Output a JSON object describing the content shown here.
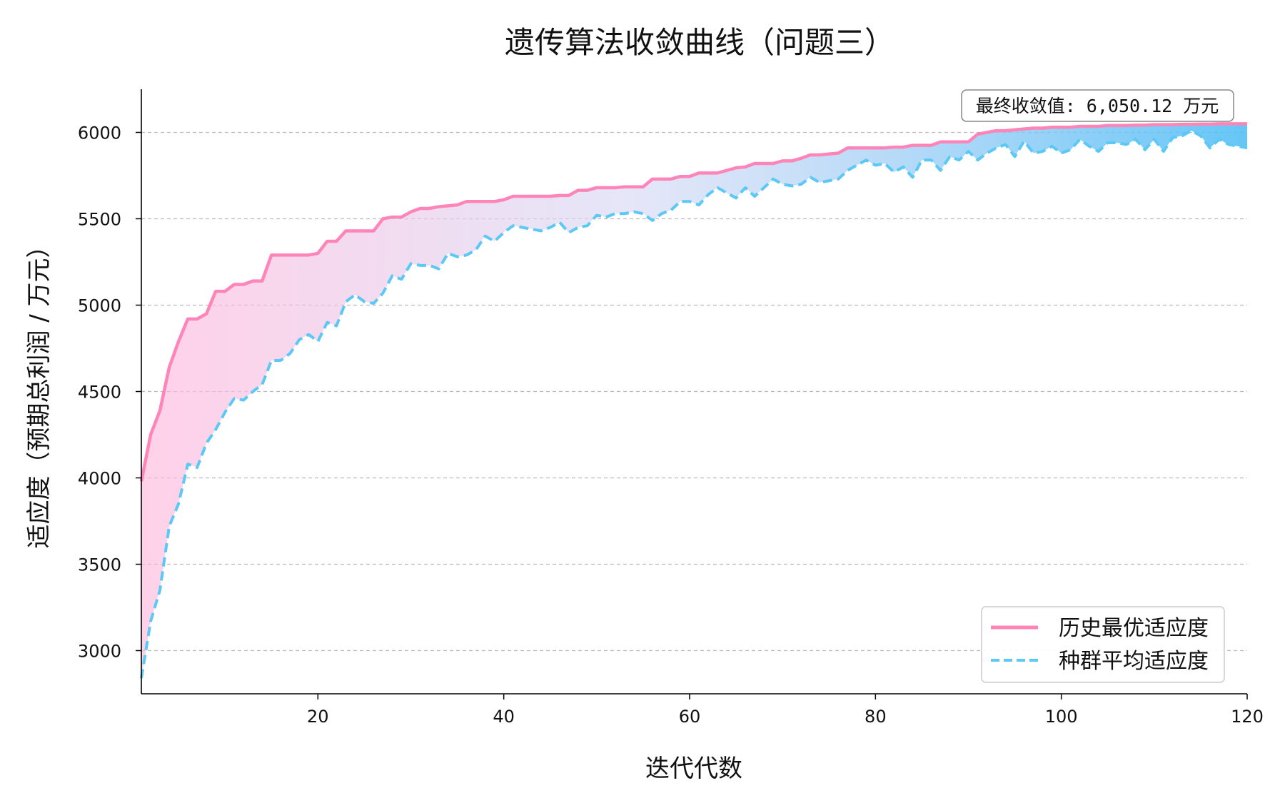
{
  "chart_data": {
    "type": "line",
    "title": "遗传算法收敛曲线（问题三）",
    "xlabel": "迭代代数",
    "ylabel": "适应度（预期总利润 / 万元）",
    "xlim": [
      1,
      120
    ],
    "ylim": [
      2750,
      6250
    ],
    "x_ticks": [
      20,
      40,
      60,
      80,
      100,
      120
    ],
    "y_ticks": [
      3000,
      3500,
      4000,
      4500,
      5000,
      5500,
      6000
    ],
    "grid": "horizontal-dashed",
    "legend_position": "bottom-right",
    "annotation": "最终收敛值: 6,050.12 万元",
    "fill_between": true,
    "series": [
      {
        "name": "历史最优适应度",
        "style": "solid",
        "color": "#ff85b9",
        "x": [
          1,
          2,
          3,
          4,
          5,
          6,
          7,
          8,
          9,
          10,
          11,
          12,
          13,
          14,
          15,
          16,
          17,
          18,
          19,
          20,
          21,
          22,
          23,
          24,
          25,
          26,
          27,
          28,
          29,
          30,
          31,
          32,
          33,
          34,
          35,
          36,
          37,
          38,
          39,
          40,
          41,
          42,
          43,
          44,
          45,
          46,
          47,
          48,
          49,
          50,
          51,
          52,
          53,
          54,
          55,
          56,
          57,
          58,
          59,
          60,
          61,
          62,
          63,
          64,
          65,
          66,
          67,
          68,
          69,
          70,
          71,
          72,
          73,
          74,
          75,
          76,
          77,
          78,
          79,
          80,
          81,
          82,
          83,
          84,
          85,
          86,
          87,
          88,
          89,
          90,
          91,
          92,
          93,
          94,
          95,
          96,
          97,
          98,
          99,
          100,
          101,
          102,
          103,
          104,
          105,
          106,
          107,
          108,
          109,
          110,
          111,
          112,
          113,
          114,
          115,
          116,
          117,
          118,
          119,
          120
        ],
        "values": [
          3980,
          4250,
          4390,
          4640,
          4790,
          4920,
          4920,
          4950,
          5080,
          5080,
          5120,
          5120,
          5140,
          5140,
          5290,
          5290,
          5290,
          5290,
          5290,
          5300,
          5370,
          5370,
          5430,
          5430,
          5430,
          5430,
          5500,
          5510,
          5510,
          5540,
          5560,
          5560,
          5570,
          5575,
          5580,
          5600,
          5600,
          5600,
          5600,
          5610,
          5630,
          5630,
          5630,
          5630,
          5630,
          5635,
          5635,
          5665,
          5665,
          5680,
          5680,
          5680,
          5685,
          5685,
          5685,
          5730,
          5730,
          5730,
          5745,
          5745,
          5765,
          5765,
          5765,
          5780,
          5795,
          5800,
          5820,
          5820,
          5820,
          5835,
          5835,
          5850,
          5870,
          5870,
          5875,
          5880,
          5910,
          5910,
          5910,
          5910,
          5910,
          5915,
          5915,
          5925,
          5925,
          5925,
          5945,
          5945,
          5945,
          5945,
          5990,
          6000,
          6010,
          6010,
          6015,
          6020,
          6025,
          6025,
          6030,
          6030,
          6030,
          6035,
          6035,
          6035,
          6040,
          6040,
          6040,
          6042,
          6042,
          6045,
          6045,
          6045,
          6047,
          6047,
          6048,
          6048,
          6050,
          6050,
          6050,
          6050
        ]
      },
      {
        "name": "种群平均适应度",
        "style": "dashed",
        "color": "#5bc8f5",
        "x": [
          1,
          2,
          3,
          4,
          5,
          6,
          7,
          8,
          9,
          10,
          11,
          12,
          13,
          14,
          15,
          16,
          17,
          18,
          19,
          20,
          21,
          22,
          23,
          24,
          25,
          26,
          27,
          28,
          29,
          30,
          31,
          32,
          33,
          34,
          35,
          36,
          37,
          38,
          39,
          40,
          41,
          42,
          43,
          44,
          45,
          46,
          47,
          48,
          49,
          50,
          51,
          52,
          53,
          54,
          55,
          56,
          57,
          58,
          59,
          60,
          61,
          62,
          63,
          64,
          65,
          66,
          67,
          68,
          69,
          70,
          71,
          72,
          73,
          74,
          75,
          76,
          77,
          78,
          79,
          80,
          81,
          82,
          83,
          84,
          85,
          86,
          87,
          88,
          89,
          90,
          91,
          92,
          93,
          94,
          95,
          96,
          97,
          98,
          99,
          100,
          101,
          102,
          103,
          104,
          105,
          106,
          107,
          108,
          109,
          110,
          111,
          112,
          113,
          114,
          115,
          116,
          117,
          118,
          119,
          120
        ],
        "values": [
          2840,
          3170,
          3350,
          3720,
          3850,
          4080,
          4060,
          4200,
          4280,
          4380,
          4460,
          4450,
          4500,
          4540,
          4680,
          4680,
          4720,
          4800,
          4830,
          4790,
          4900,
          4880,
          5020,
          5060,
          5020,
          5010,
          5070,
          5170,
          5150,
          5240,
          5230,
          5230,
          5210,
          5300,
          5280,
          5290,
          5320,
          5400,
          5370,
          5420,
          5460,
          5450,
          5440,
          5430,
          5450,
          5480,
          5420,
          5450,
          5460,
          5520,
          5510,
          5530,
          5530,
          5540,
          5530,
          5490,
          5530,
          5550,
          5600,
          5600,
          5580,
          5640,
          5680,
          5650,
          5620,
          5680,
          5630,
          5680,
          5730,
          5700,
          5690,
          5700,
          5740,
          5710,
          5720,
          5730,
          5780,
          5810,
          5840,
          5810,
          5820,
          5770,
          5800,
          5740,
          5840,
          5840,
          5780,
          5860,
          5840,
          5890,
          5840,
          5880,
          5910,
          5930,
          5860,
          5950,
          5880,
          5890,
          5920,
          5880,
          5900,
          5960,
          5920,
          5890,
          5940,
          5940,
          5930,
          5960,
          5900,
          5960,
          5890,
          5970,
          5980,
          6010,
          5980,
          5910,
          5960,
          5930,
          5920,
          5910
        ]
      }
    ]
  }
}
